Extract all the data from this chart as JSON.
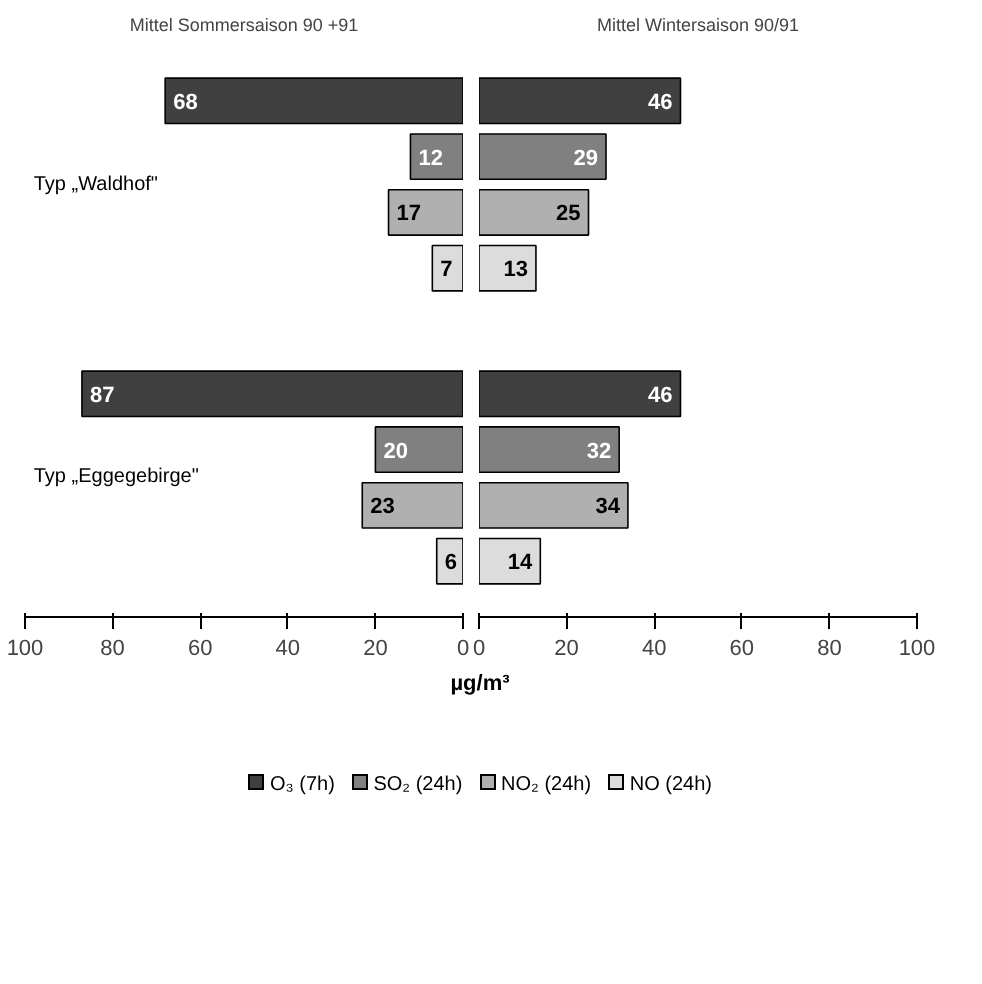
{
  "chart_data": [
    {
      "type": "bar",
      "orientation": "horizontal",
      "title": "Mittel Sommersaison 90 +91",
      "xlabel": "µg/m³",
      "categories": [
        "Typ „Waldhof\"",
        "Typ „Eggegebirge\""
      ],
      "series": [
        {
          "name": "O₃ (7h)",
          "color": "#404040",
          "values": [
            68,
            87
          ]
        },
        {
          "name": "SO₂ (24h)",
          "color": "#808080",
          "values": [
            12,
            20
          ]
        },
        {
          "name": "NO₂ (24h)",
          "color": "#b0b0b0",
          "values": [
            17,
            23
          ]
        },
        {
          "name": "NO (24h)",
          "color": "#dcdcdc",
          "values": [
            7,
            6
          ]
        }
      ],
      "xlim": [
        100,
        0
      ],
      "xticks": [
        100,
        80,
        60,
        40,
        20,
        0
      ],
      "data_labels": true,
      "grid": false,
      "legend": "bottom"
    },
    {
      "type": "bar",
      "orientation": "horizontal",
      "title": "Mittel Wintersaison 90/91",
      "categories": [
        null,
        null
      ],
      "series": [
        {
          "color": "#404040",
          "values": [
            46,
            46
          ]
        },
        {
          "color": "#808080",
          "values": [
            29,
            32
          ]
        },
        {
          "color": "#b0b0b0",
          "values": [
            25,
            34
          ]
        },
        {
          "color": "#dcdcdc",
          "values": [
            13,
            14
          ]
        }
      ],
      "xlim": [
        0,
        100
      ],
      "xticks": [
        0,
        20,
        40,
        60,
        80,
        100
      ],
      "data_labels": true,
      "grid": false
    }
  ]
}
